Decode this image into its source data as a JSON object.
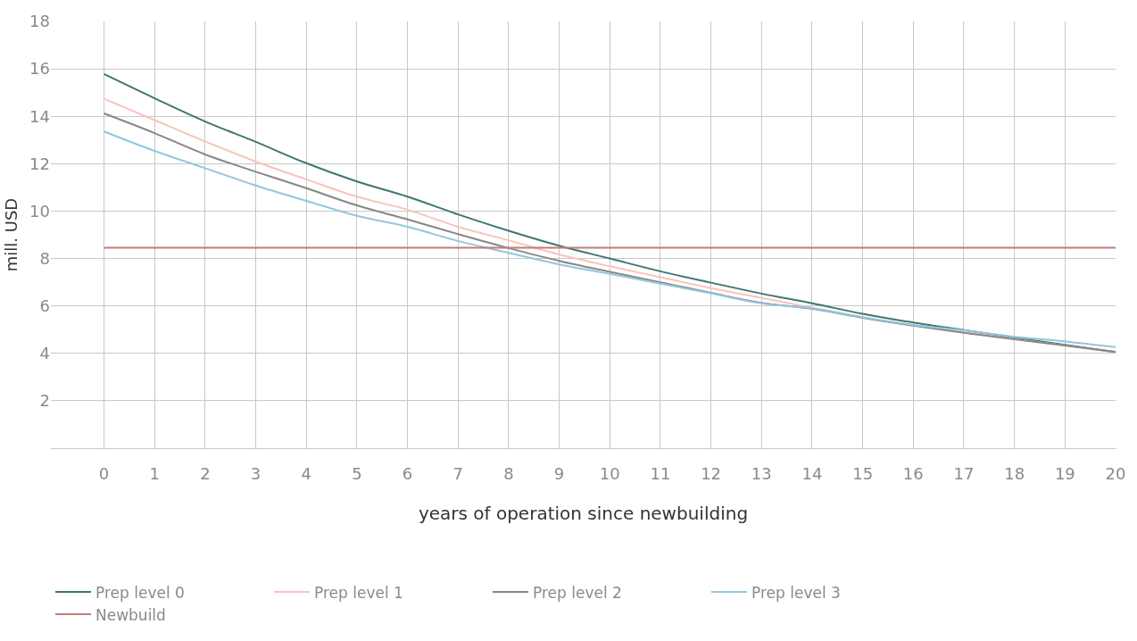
{
  "chart_data": {
    "type": "line",
    "xlabel": "years of operation since newbuilding",
    "ylabel": "mill. USD",
    "x": [
      0,
      1,
      2,
      3,
      4,
      5,
      6,
      7,
      8,
      9,
      10,
      11,
      12,
      13,
      14,
      15,
      16,
      17,
      18,
      19,
      20
    ],
    "xlim": [
      -1.05,
      20
    ],
    "xticks": [
      0,
      1,
      2,
      3,
      4,
      5,
      6,
      7,
      8,
      9,
      10,
      11,
      12,
      13,
      14,
      15,
      16,
      17,
      18,
      19,
      20
    ],
    "ylim": [
      0,
      18
    ],
    "yticks": [
      2,
      4,
      6,
      8,
      10,
      12,
      14,
      16,
      18
    ],
    "grid": true,
    "legend": "bottom",
    "marker": "none",
    "line_style": "solid",
    "series": [
      {
        "name": "Prep level 0",
        "color": "#3f7672",
        "values": [
          15.78,
          14.76,
          13.78,
          12.92,
          12.02,
          11.25,
          10.61,
          9.86,
          9.17,
          8.54,
          8.0,
          7.46,
          6.98,
          6.52,
          6.11,
          5.67,
          5.3,
          4.98,
          4.67,
          4.36,
          4.06
        ]
      },
      {
        "name": "Prep level 1",
        "color": "#f8c4bb",
        "values": [
          14.74,
          13.84,
          12.94,
          12.09,
          11.34,
          10.61,
          10.06,
          9.34,
          8.77,
          8.17,
          7.67,
          7.21,
          6.75,
          6.34,
          5.92,
          5.53,
          5.19,
          4.89,
          4.6,
          4.33,
          4.05
        ]
      },
      {
        "name": "Prep level 2",
        "color": "#878787",
        "values": [
          14.12,
          13.29,
          12.39,
          11.66,
          10.97,
          10.24,
          9.65,
          9.03,
          8.44,
          7.9,
          7.44,
          7.0,
          6.55,
          6.13,
          5.88,
          5.5,
          5.17,
          4.87,
          4.59,
          4.33,
          4.06
        ]
      },
      {
        "name": "Prep level 3",
        "color": "#93c6e0",
        "values": [
          13.36,
          12.54,
          11.81,
          11.08,
          10.43,
          9.8,
          9.34,
          8.74,
          8.24,
          7.75,
          7.35,
          6.94,
          6.53,
          6.11,
          5.9,
          5.52,
          5.2,
          4.97,
          4.7,
          4.5,
          4.26
        ]
      },
      {
        "name": "Newbuild",
        "color": "#c27b78",
        "values": [
          8.45,
          8.45,
          8.45,
          8.45,
          8.45,
          8.45,
          8.45,
          8.45,
          8.45,
          8.45,
          8.45,
          8.45,
          8.45,
          8.45,
          8.45,
          8.45,
          8.45,
          8.45,
          8.45,
          8.45,
          8.45
        ]
      }
    ]
  }
}
